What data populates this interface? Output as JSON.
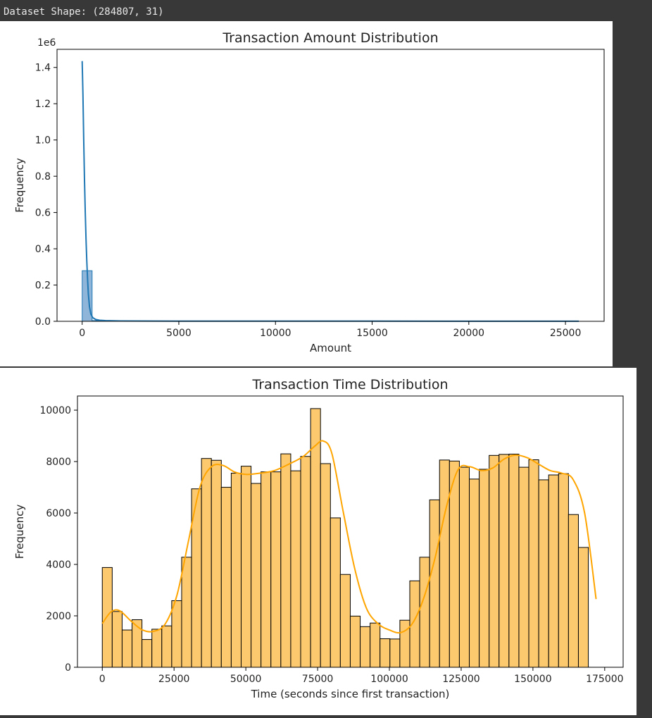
{
  "console": {
    "text": "Dataset Shape: (284807, 31)"
  },
  "chart_data": [
    {
      "type": "histogram",
      "title": "Transaction Amount Distribution",
      "xlabel": "Amount",
      "ylabel": "Frequency",
      "y_scale_label": "1e6",
      "xlim": [
        -1300,
        27000
      ],
      "ylim": [
        0,
        1.5
      ],
      "x_ticks": [
        0,
        5000,
        10000,
        15000,
        20000,
        25000
      ],
      "x_tick_labels": [
        "0",
        "5000",
        "10000",
        "15000",
        "20000",
        "25000"
      ],
      "y_ticks": [
        0,
        0.2,
        0.4,
        0.6,
        0.8,
        1.0,
        1.2,
        1.4
      ],
      "y_tick_labels": [
        "0.0",
        "0.2",
        "0.4",
        "0.6",
        "0.8",
        "1.0",
        "1.2",
        "1.4"
      ],
      "bin_edges": [
        0,
        514,
        1028,
        1542,
        2056,
        2570
      ],
      "counts": [
        0.279,
        0.004,
        0.0008,
        0.0002,
        0.0001
      ],
      "kde": {
        "x": [
          0,
          40,
          80,
          120,
          160,
          200,
          240,
          280,
          320,
          380,
          450,
          550,
          700,
          900,
          1200,
          2000,
          5000,
          10000,
          15000,
          20000,
          25691
        ],
        "y": [
          1.435,
          1.25,
          1.0,
          0.78,
          0.6,
          0.45,
          0.33,
          0.23,
          0.15,
          0.08,
          0.04,
          0.02,
          0.01,
          0.006,
          0.004,
          0.002,
          0.001,
          0.0008,
          0.0006,
          0.0004,
          0.0004
        ]
      },
      "bar_color": "#1f77b4",
      "bar_fill": "#8fb6d8",
      "line_color": "#1f77b4"
    },
    {
      "type": "histogram",
      "title": "Transaction Time Distribution",
      "xlabel": "Time (seconds since first transaction)",
      "ylabel": "Frequency",
      "xlim": [
        -8650,
        181420
      ],
      "ylim": [
        0,
        10550
      ],
      "x_ticks": [
        0,
        25000,
        50000,
        75000,
        100000,
        125000,
        150000,
        175000
      ],
      "x_tick_labels": [
        "0",
        "25000",
        "50000",
        "75000",
        "100000",
        "125000",
        "150000",
        "175000"
      ],
      "y_ticks": [
        0,
        2000,
        4000,
        6000,
        8000,
        10000
      ],
      "y_tick_labels": [
        "0",
        "2000",
        "4000",
        "6000",
        "8000",
        "10000"
      ],
      "bin_width": 3455,
      "counts": [
        3880,
        2170,
        1450,
        1850,
        1080,
        1480,
        1610,
        2590,
        4280,
        6940,
        8120,
        8050,
        7000,
        7550,
        7820,
        7150,
        7600,
        7600,
        8300,
        7640,
        8200,
        10060,
        7920,
        5810,
        3610,
        1990,
        1580,
        1720,
        1110,
        1100,
        1830,
        3360,
        4280,
        6510,
        8060,
        8020,
        7780,
        7320,
        7700,
        8240,
        8280,
        8290,
        7780,
        8070,
        7290,
        7480,
        7530,
        5940,
        4660
      ],
      "kde": {
        "x": [
          0,
          3000,
          6000,
          10000,
          14000,
          18000,
          22000,
          26000,
          30000,
          34000,
          38000,
          42000,
          46000,
          50000,
          55000,
          60000,
          65000,
          70000,
          74000,
          77000,
          80000,
          84000,
          88000,
          92000,
          96000,
          100000,
          104000,
          108000,
          112000,
          116000,
          120000,
          124000,
          128000,
          132000,
          136000,
          140000,
          144000,
          148000,
          152000,
          156000,
          160000,
          164000,
          168000,
          172000
        ],
        "y": [
          1700,
          2150,
          2200,
          1800,
          1450,
          1400,
          1700,
          2800,
          4900,
          7000,
          7800,
          7850,
          7600,
          7500,
          7550,
          7650,
          7900,
          8200,
          8600,
          8800,
          8300,
          6000,
          3800,
          2300,
          1700,
          1450,
          1350,
          1700,
          2700,
          4300,
          6300,
          7700,
          7800,
          7650,
          7750,
          8100,
          8250,
          8150,
          7900,
          7650,
          7550,
          7300,
          6000,
          2650
        ]
      },
      "bar_color": "#000000",
      "bar_fill": "#fdc96f",
      "line_color": "#ffa500"
    }
  ]
}
